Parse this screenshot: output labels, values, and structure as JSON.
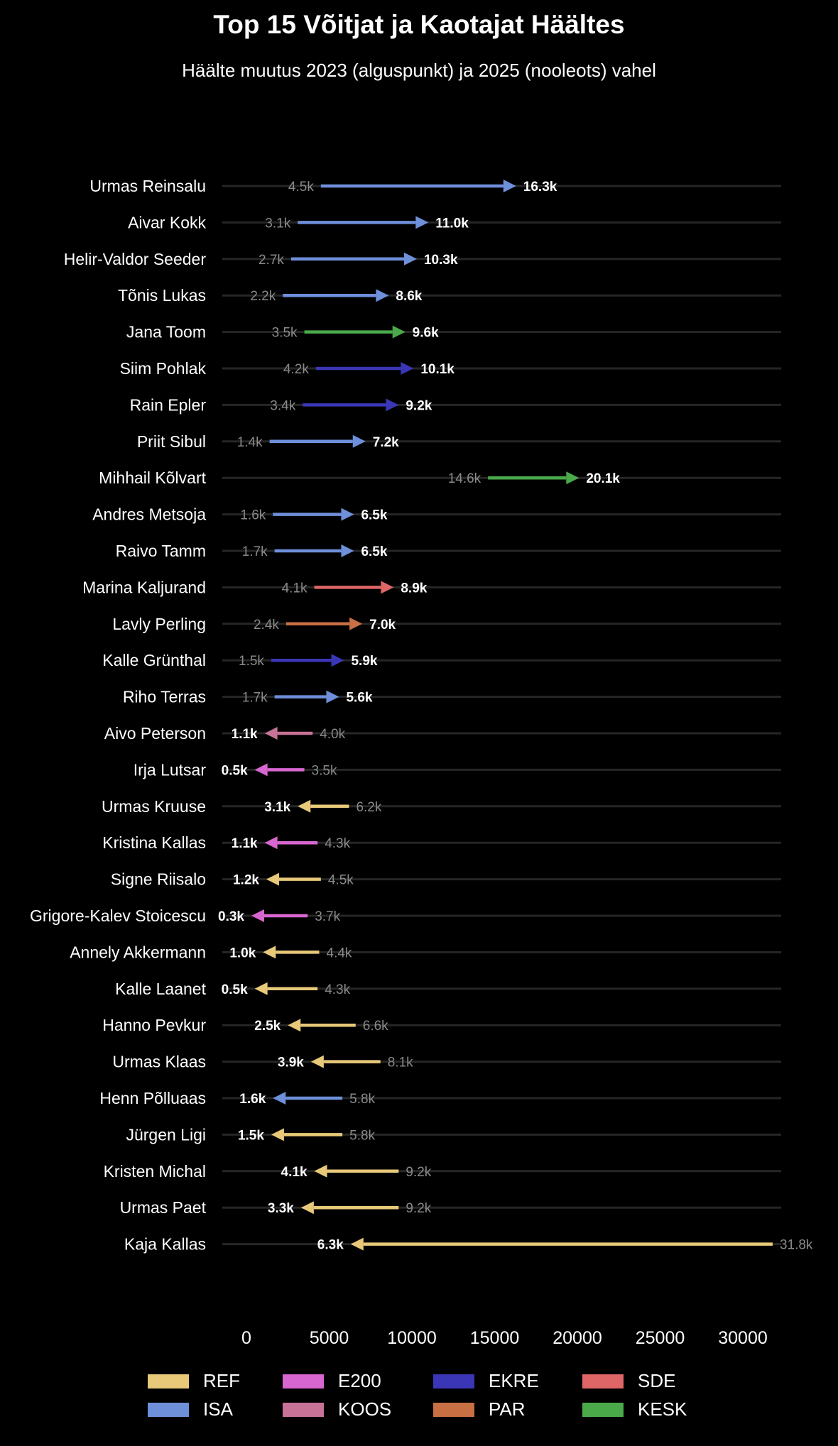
{
  "chart_data": {
    "type": "arrow",
    "title": "Top 15 Võitjat ja Kaotajat Häältes",
    "subtitle": "Häälte muutus 2023 (alguspunkt) ja 2025 (nooleots) vahel",
    "xlim": [
      0,
      32500
    ],
    "x_ticks": [
      0,
      5000,
      10000,
      15000,
      20000,
      25000,
      30000
    ],
    "x_tick_labels": [
      "0",
      "5000",
      "10000",
      "15000",
      "20000",
      "25000",
      "30000"
    ],
    "party_colors": {
      "REF": "#e8c97a",
      "ISA": "#6e8fda",
      "E200": "#d866d0",
      "KOOS": "#c97298",
      "EKRE": "#3a36b6",
      "PAR": "#c86f44",
      "SDE": "#df6666",
      "KESK": "#4aaa4a"
    },
    "legend": [
      "REF",
      "E200",
      "EKRE",
      "SDE",
      "ISA",
      "KOOS",
      "PAR",
      "KESK"
    ],
    "rows": [
      {
        "name": "Urmas Reinsalu",
        "party": "ISA",
        "v2023": 4500,
        "v2025": 16300,
        "label_2023": "4.5k",
        "label_2025": "16.3k"
      },
      {
        "name": "Aivar Kokk",
        "party": "ISA",
        "v2023": 3100,
        "v2025": 11000,
        "label_2023": "3.1k",
        "label_2025": "11.0k"
      },
      {
        "name": "Helir-Valdor Seeder",
        "party": "ISA",
        "v2023": 2700,
        "v2025": 10300,
        "label_2023": "2.7k",
        "label_2025": "10.3k"
      },
      {
        "name": "Tõnis Lukas",
        "party": "ISA",
        "v2023": 2200,
        "v2025": 8600,
        "label_2023": "2.2k",
        "label_2025": "8.6k"
      },
      {
        "name": "Jana Toom",
        "party": "KESK",
        "v2023": 3500,
        "v2025": 9600,
        "label_2023": "3.5k",
        "label_2025": "9.6k"
      },
      {
        "name": "Siim Pohlak",
        "party": "EKRE",
        "v2023": 4200,
        "v2025": 10100,
        "label_2023": "4.2k",
        "label_2025": "10.1k"
      },
      {
        "name": "Rain Epler",
        "party": "EKRE",
        "v2023": 3400,
        "v2025": 9200,
        "label_2023": "3.4k",
        "label_2025": "9.2k"
      },
      {
        "name": "Priit Sibul",
        "party": "ISA",
        "v2023": 1400,
        "v2025": 7200,
        "label_2023": "1.4k",
        "label_2025": "7.2k"
      },
      {
        "name": "Mihhail Kõlvart",
        "party": "KESK",
        "v2023": 14600,
        "v2025": 20100,
        "label_2023": "14.6k",
        "label_2025": "20.1k"
      },
      {
        "name": "Andres Metsoja",
        "party": "ISA",
        "v2023": 1600,
        "v2025": 6500,
        "label_2023": "1.6k",
        "label_2025": "6.5k"
      },
      {
        "name": "Raivo Tamm",
        "party": "ISA",
        "v2023": 1700,
        "v2025": 6500,
        "label_2023": "1.7k",
        "label_2025": "6.5k"
      },
      {
        "name": "Marina Kaljurand",
        "party": "SDE",
        "v2023": 4100,
        "v2025": 8900,
        "label_2023": "4.1k",
        "label_2025": "8.9k"
      },
      {
        "name": "Lavly Perling",
        "party": "PAR",
        "v2023": 2400,
        "v2025": 7000,
        "label_2023": "2.4k",
        "label_2025": "7.0k"
      },
      {
        "name": "Kalle Grünthal",
        "party": "EKRE",
        "v2023": 1500,
        "v2025": 5900,
        "label_2023": "1.5k",
        "label_2025": "5.9k"
      },
      {
        "name": "Riho Terras",
        "party": "ISA",
        "v2023": 1700,
        "v2025": 5600,
        "label_2023": "1.7k",
        "label_2025": "5.6k"
      },
      {
        "name": "Aivo Peterson",
        "party": "KOOS",
        "v2023": 4000,
        "v2025": 1100,
        "label_2023": "4.0k",
        "label_2025": "1.1k"
      },
      {
        "name": "Irja Lutsar",
        "party": "E200",
        "v2023": 3500,
        "v2025": 500,
        "label_2023": "3.5k",
        "label_2025": "0.5k"
      },
      {
        "name": "Urmas Kruuse",
        "party": "REF",
        "v2023": 6200,
        "v2025": 3100,
        "label_2023": "6.2k",
        "label_2025": "3.1k"
      },
      {
        "name": "Kristina Kallas",
        "party": "E200",
        "v2023": 4300,
        "v2025": 1100,
        "label_2023": "4.3k",
        "label_2025": "1.1k"
      },
      {
        "name": "Signe Riisalo",
        "party": "REF",
        "v2023": 4500,
        "v2025": 1200,
        "label_2023": "4.5k",
        "label_2025": "1.2k"
      },
      {
        "name": "Grigore-Kalev Stoicescu",
        "party": "E200",
        "v2023": 3700,
        "v2025": 300,
        "label_2023": "3.7k",
        "label_2025": "0.3k"
      },
      {
        "name": "Annely Akkermann",
        "party": "REF",
        "v2023": 4400,
        "v2025": 1000,
        "label_2023": "4.4k",
        "label_2025": "1.0k"
      },
      {
        "name": "Kalle Laanet",
        "party": "REF",
        "v2023": 4300,
        "v2025": 500,
        "label_2023": "4.3k",
        "label_2025": "0.5k"
      },
      {
        "name": "Hanno Pevkur",
        "party": "REF",
        "v2023": 6600,
        "v2025": 2500,
        "label_2023": "6.6k",
        "label_2025": "2.5k"
      },
      {
        "name": "Urmas Klaas",
        "party": "REF",
        "v2023": 8100,
        "v2025": 3900,
        "label_2023": "8.1k",
        "label_2025": "3.9k"
      },
      {
        "name": "Henn Põlluaas",
        "party": "ISA",
        "v2023": 5800,
        "v2025": 1600,
        "label_2023": "5.8k",
        "label_2025": "1.6k"
      },
      {
        "name": "Jürgen Ligi",
        "party": "REF",
        "v2023": 5800,
        "v2025": 1500,
        "label_2023": "5.8k",
        "label_2025": "1.5k"
      },
      {
        "name": "Kristen Michal",
        "party": "REF",
        "v2023": 9200,
        "v2025": 4100,
        "label_2023": "9.2k",
        "label_2025": "4.1k"
      },
      {
        "name": "Urmas Paet",
        "party": "REF",
        "v2023": 9200,
        "v2025": 3300,
        "label_2023": "9.2k",
        "label_2025": "3.3k"
      },
      {
        "name": "Kaja Kallas",
        "party": "REF",
        "v2023": 31800,
        "v2025": 6300,
        "label_2023": "31.8k",
        "label_2025": "6.3k"
      }
    ]
  }
}
